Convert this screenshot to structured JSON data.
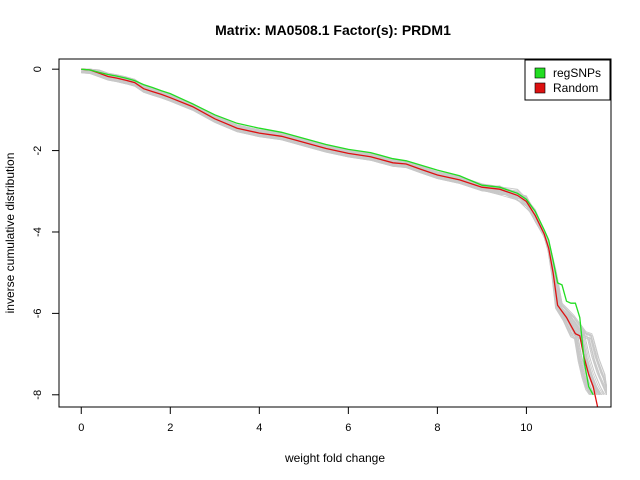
{
  "chart_data": {
    "type": "line",
    "title": "Matrix: MA0508.1 Factor(s): PRDM1",
    "xlabel": "weight fold change",
    "ylabel": "inverse cumulative distribution",
    "xlim": [
      -0.5,
      11.9
    ],
    "ylim": [
      -8.3,
      0.25
    ],
    "x_ticks": [
      0,
      2,
      4,
      6,
      8,
      10
    ],
    "y_ticks": [
      0,
      -2,
      -4,
      -6,
      -8
    ],
    "legend_position": "top-right",
    "grid": false,
    "background_band": {
      "color": "#c8c8c8",
      "count": 40,
      "description_free": true
    },
    "series": [
      {
        "name": "regSNPs",
        "color": "#22dd22",
        "x": [
          0.0,
          0.2,
          0.4,
          0.6,
          0.8,
          1.0,
          1.2,
          1.4,
          1.6,
          1.8,
          2.0,
          2.5,
          3.0,
          3.5,
          4.0,
          4.5,
          5.0,
          5.5,
          6.0,
          6.5,
          7.0,
          7.3,
          7.6,
          8.0,
          8.5,
          9.0,
          9.4,
          9.8,
          10.0,
          10.2,
          10.4,
          10.5,
          10.6,
          10.7,
          10.8,
          10.9,
          11.0,
          11.1,
          11.2,
          11.3,
          11.4,
          11.5
        ],
        "values": [
          0.0,
          -0.02,
          -0.08,
          -0.13,
          -0.17,
          -0.22,
          -0.28,
          -0.38,
          -0.45,
          -0.53,
          -0.6,
          -0.85,
          -1.12,
          -1.33,
          -1.45,
          -1.55,
          -1.7,
          -1.85,
          -1.97,
          -2.05,
          -2.2,
          -2.25,
          -2.35,
          -2.48,
          -2.62,
          -2.85,
          -2.9,
          -3.05,
          -3.2,
          -3.5,
          -3.95,
          -4.2,
          -4.7,
          -5.25,
          -5.3,
          -5.7,
          -5.75,
          -5.75,
          -6.1,
          -7.2,
          -7.8,
          -8.0
        ]
      },
      {
        "name": "Random",
        "color": "#dd1111",
        "x": [
          0.0,
          0.2,
          0.4,
          0.6,
          0.8,
          1.0,
          1.2,
          1.4,
          1.6,
          1.8,
          2.0,
          2.5,
          3.0,
          3.5,
          4.0,
          4.5,
          5.0,
          5.5,
          6.0,
          6.5,
          7.0,
          7.3,
          7.6,
          8.0,
          8.5,
          9.0,
          9.4,
          9.8,
          10.0,
          10.2,
          10.4,
          10.5,
          10.6,
          10.7,
          10.8,
          10.9,
          11.0,
          11.1,
          11.2,
          11.3,
          11.4,
          11.5,
          11.6
        ],
        "values": [
          0.0,
          -0.02,
          -0.1,
          -0.18,
          -0.22,
          -0.27,
          -0.33,
          -0.48,
          -0.55,
          -0.62,
          -0.7,
          -0.92,
          -1.22,
          -1.45,
          -1.57,
          -1.65,
          -1.8,
          -1.95,
          -2.07,
          -2.15,
          -2.3,
          -2.33,
          -2.45,
          -2.6,
          -2.72,
          -2.9,
          -2.95,
          -3.1,
          -3.25,
          -3.6,
          -4.05,
          -4.4,
          -5.0,
          -5.8,
          -5.95,
          -6.1,
          -6.3,
          -6.5,
          -6.55,
          -7.1,
          -7.5,
          -7.8,
          -8.3
        ]
      }
    ]
  }
}
